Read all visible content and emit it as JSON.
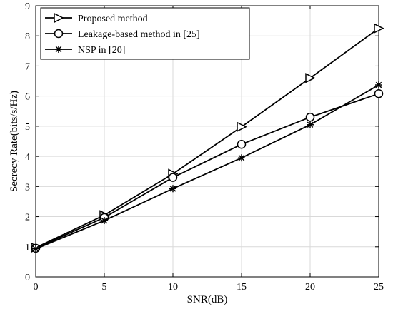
{
  "chart_data": {
    "type": "line",
    "title": "",
    "xlabel": "SNR(dB)",
    "ylabel": "Secrecy Rate(bits/s/Hz)",
    "xlim": [
      0,
      25
    ],
    "ylim": [
      0,
      9
    ],
    "x_ticks": [
      "0",
      "5",
      "10",
      "15",
      "20",
      "25"
    ],
    "y_ticks": [
      "0",
      "1",
      "2",
      "3",
      "4",
      "5",
      "6",
      "7",
      "8",
      "9"
    ],
    "grid": true,
    "legend_position": "top-left",
    "x": [
      0,
      5,
      10,
      15,
      20,
      25
    ],
    "series": [
      {
        "name": "Proposed method",
        "marker": "triangle-right",
        "color": "#000000",
        "values": [
          0.97,
          2.05,
          3.42,
          4.98,
          6.6,
          8.25
        ]
      },
      {
        "name": "Leakage-based method in [25]",
        "marker": "circle",
        "color": "#000000",
        "values": [
          0.95,
          1.97,
          3.3,
          4.4,
          5.3,
          6.08
        ]
      },
      {
        "name": "NSP in [20]",
        "marker": "asterisk",
        "color": "#000000",
        "values": [
          0.93,
          1.87,
          2.93,
          3.95,
          5.05,
          6.37
        ]
      }
    ]
  }
}
